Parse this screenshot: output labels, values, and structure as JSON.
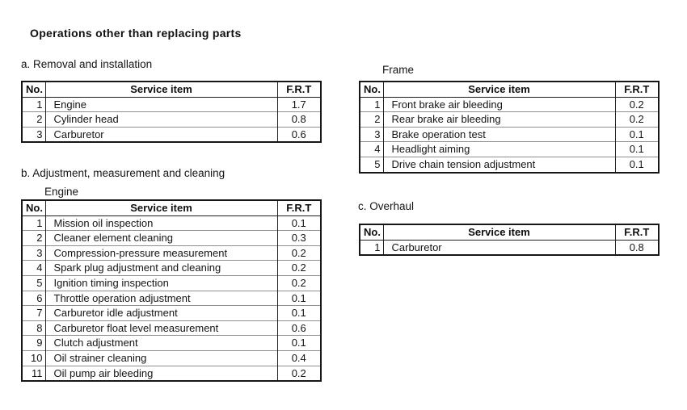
{
  "document": {
    "title": "Operations other than replacing parts"
  },
  "headers": {
    "no": "No.",
    "service_item": "Service item",
    "frt": "F.R.T"
  },
  "sections": {
    "removal": {
      "label": "a. Removal and installation",
      "rows": [
        {
          "no": "1",
          "item": "Engine",
          "frt": "1.7"
        },
        {
          "no": "2",
          "item": "Cylinder head",
          "frt": "0.8"
        },
        {
          "no": "3",
          "item": "Carburetor",
          "frt": "0.6"
        }
      ]
    },
    "frame": {
      "sublabel": "Frame",
      "rows": [
        {
          "no": "1",
          "item": "Front brake air bleeding",
          "frt": "0.2"
        },
        {
          "no": "2",
          "item": "Rear brake air bleeding",
          "frt": "0.2"
        },
        {
          "no": "3",
          "item": "Brake operation test",
          "frt": "0.1"
        },
        {
          "no": "4",
          "item": "Headlight aiming",
          "frt": "0.1"
        },
        {
          "no": "5",
          "item": "Drive chain tension adjustment",
          "frt": "0.1"
        }
      ]
    },
    "adjustment": {
      "label": "b. Adjustment, measurement and cleaning",
      "sublabel": "Engine",
      "rows": [
        {
          "no": "1",
          "item": "Mission oil inspection",
          "frt": "0.1"
        },
        {
          "no": "2",
          "item": "Cleaner element cleaning",
          "frt": "0.3"
        },
        {
          "no": "3",
          "item": "Compression-pressure measurement",
          "frt": "0.2"
        },
        {
          "no": "4",
          "item": "Spark plug adjustment and cleaning",
          "frt": "0.2"
        },
        {
          "no": "5",
          "item": "Ignition timing inspection",
          "frt": "0.2"
        },
        {
          "no": "6",
          "item": "Throttle operation adjustment",
          "frt": "0.1"
        },
        {
          "no": "7",
          "item": "Carburetor idle adjustment",
          "frt": "0.1"
        },
        {
          "no": "8",
          "item": "Carburetor float level measurement",
          "frt": "0.6"
        },
        {
          "no": "9",
          "item": "Clutch adjustment",
          "frt": "0.1"
        },
        {
          "no": "10",
          "item": "Oil strainer cleaning",
          "frt": "0.4"
        },
        {
          "no": "11",
          "item": "Oil pump air bleeding",
          "frt": "0.2"
        }
      ]
    },
    "overhaul": {
      "label": "c. Overhaul",
      "rows": [
        {
          "no": "1",
          "item": "Carburetor",
          "frt": "0.8"
        }
      ]
    }
  }
}
